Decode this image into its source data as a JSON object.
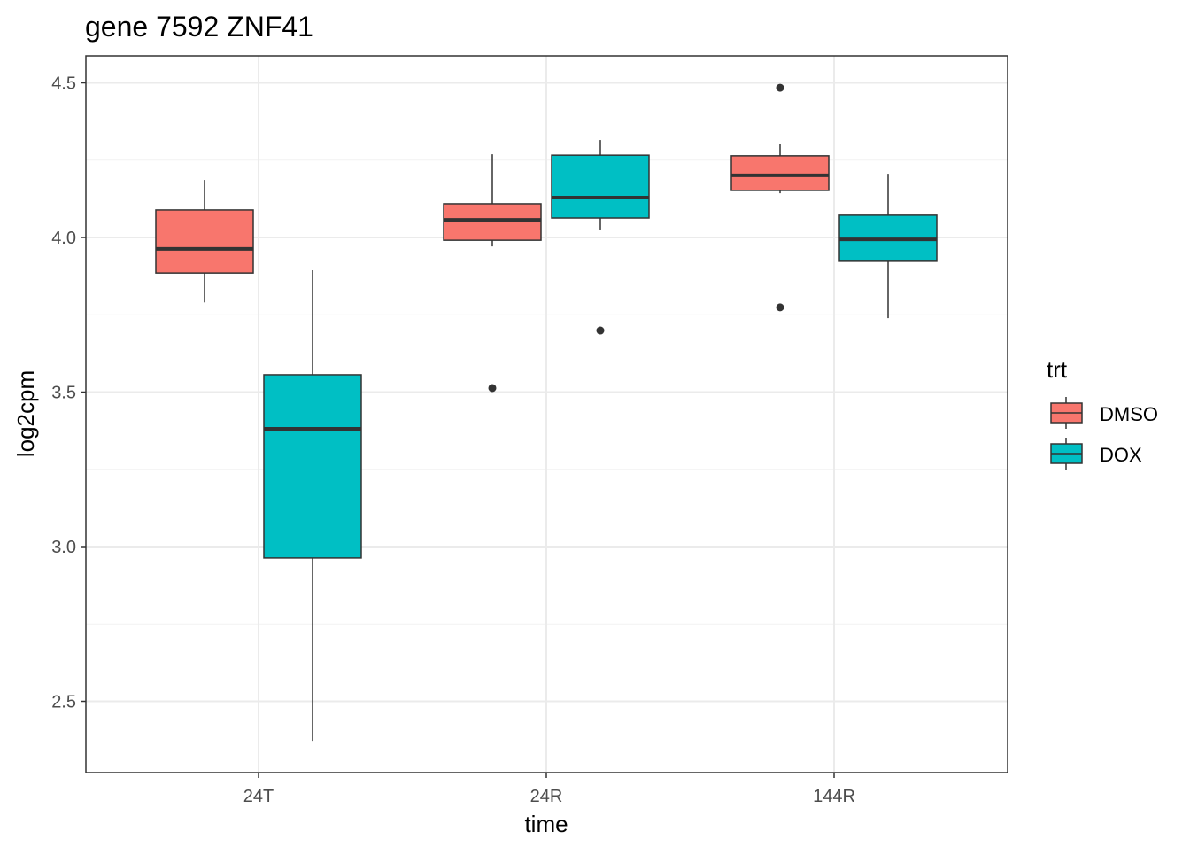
{
  "chart_data": {
    "type": "boxplot",
    "title": "gene 7592 ZNF41",
    "xlabel": "time",
    "ylabel": "log2cpm",
    "categories": [
      "24T",
      "24R",
      "144R"
    ],
    "ylim": [
      2.27,
      4.59
    ],
    "yticks": [
      2.5,
      3.0,
      3.5,
      4.0,
      4.5
    ],
    "ytick_labels": [
      "2.5",
      "3.0",
      "3.5",
      "4.0",
      "4.5"
    ],
    "grid": true,
    "legend": {
      "title": "trt",
      "position": "right",
      "entries": [
        "DMSO",
        "DOX"
      ]
    },
    "colors": {
      "DMSO": "#F8766D",
      "DOX": "#00BFC4"
    },
    "series": [
      {
        "name": "DMSO",
        "boxes": [
          {
            "category": "24T",
            "low": 3.79,
            "q1": 3.885,
            "median": 3.963,
            "q3": 4.089,
            "high": 4.186,
            "outliers": []
          },
          {
            "category": "24R",
            "low": 3.971,
            "q1": 3.991,
            "median": 4.057,
            "q3": 4.109,
            "high": 4.269,
            "outliers": [
              3.513
            ]
          },
          {
            "category": "144R",
            "low": 4.143,
            "q1": 4.152,
            "median": 4.201,
            "q3": 4.264,
            "high": 4.301,
            "outliers": [
              4.484,
              3.774
            ]
          }
        ]
      },
      {
        "name": "DOX",
        "boxes": [
          {
            "category": "24T",
            "low": 2.372,
            "q1": 2.963,
            "median": 3.381,
            "q3": 3.556,
            "high": 3.894,
            "outliers": []
          },
          {
            "category": "24R",
            "low": 4.023,
            "q1": 4.063,
            "median": 4.129,
            "q3": 4.266,
            "high": 4.315,
            "outliers": [
              3.699
            ]
          },
          {
            "category": "144R",
            "low": 3.739,
            "q1": 3.923,
            "median": 3.994,
            "q3": 4.072,
            "high": 4.206,
            "outliers": []
          }
        ]
      }
    ]
  }
}
